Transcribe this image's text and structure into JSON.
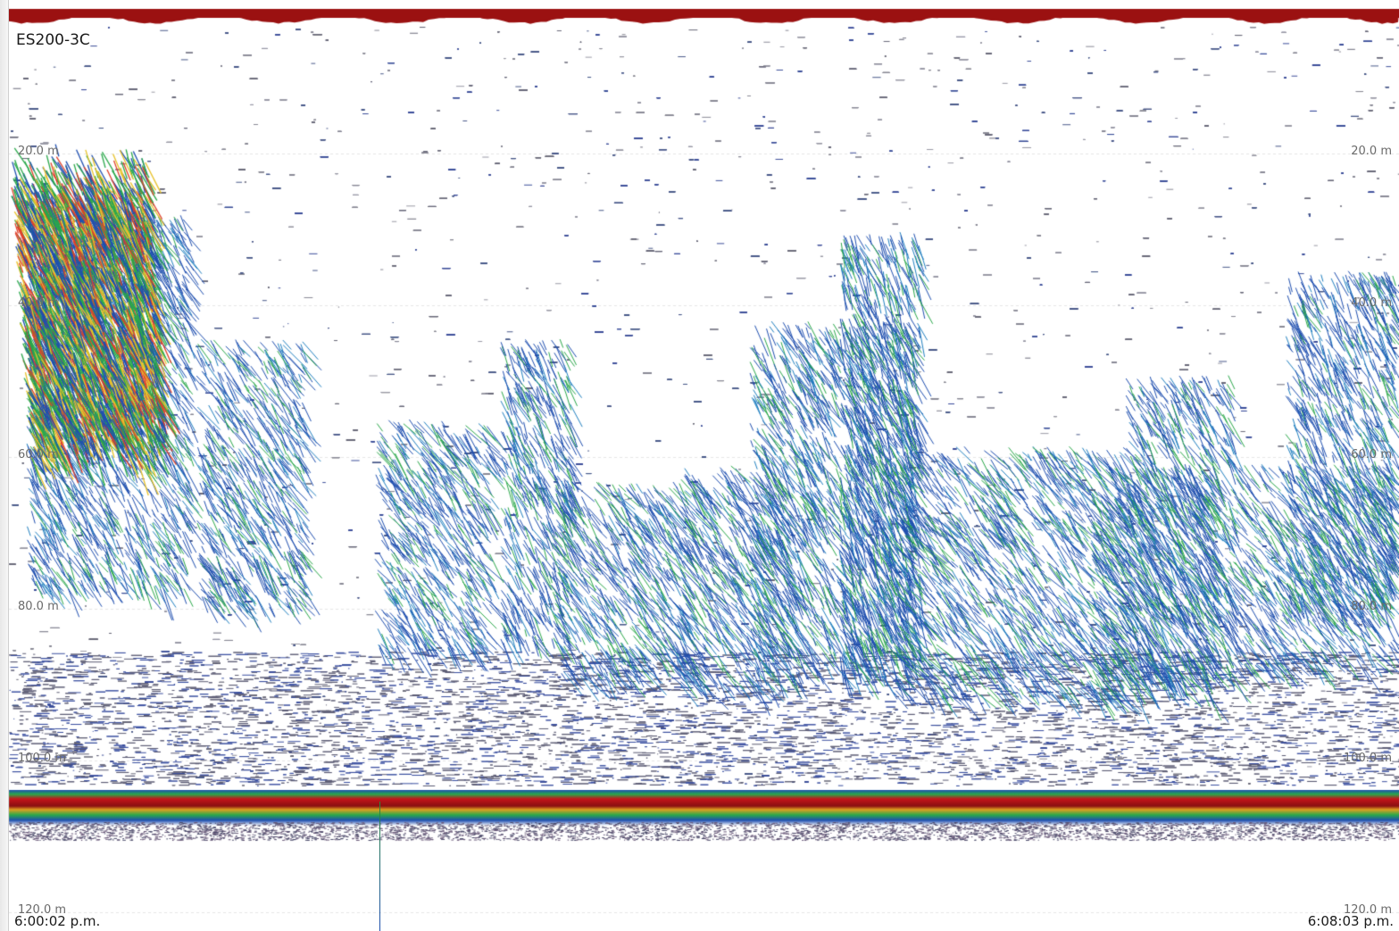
{
  "echogram": {
    "channel": "ES200-3C",
    "depth_labels": [
      "20.0 m",
      "40.0 m",
      "60.0 m",
      "80.0 m",
      "100.0 m",
      "120.0 m"
    ],
    "depth_values_m": [
      20,
      40,
      60,
      80,
      100,
      120
    ],
    "time_start": "6:00:02 p.m.",
    "time_end": "6:08:03 p.m.",
    "colors": {
      "surface_band": "#9b1111",
      "bottom_band": "#c4151a",
      "backscatter_low": "#1f4fb0",
      "backscatter_mid": "#2aa84a",
      "backscatter_high": "#e8c22a",
      "backscatter_peak": "#e0402a"
    }
  }
}
